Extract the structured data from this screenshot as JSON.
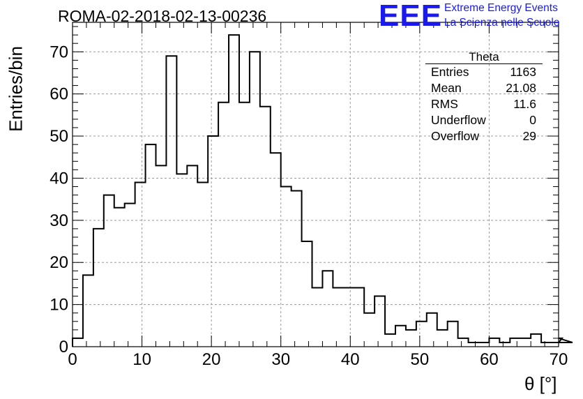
{
  "header": {
    "title": "ROMA-02-2018-02-13-00236",
    "logo_text": "EEE",
    "logo_line1": "Extreme Energy Events",
    "logo_line2": "La Scienza nelle Scuole",
    "logo_color": "#1a1aee"
  },
  "stats": {
    "name": "Theta",
    "rows": [
      {
        "label": "Entries",
        "value": "1163"
      },
      {
        "label": "Mean",
        "value": "21.08"
      },
      {
        "label": "RMS",
        "value": "11.6"
      },
      {
        "label": "Underflow",
        "value": "0"
      },
      {
        "label": "Overflow",
        "value": "29"
      }
    ]
  },
  "chart_data": {
    "type": "bar",
    "histogram": true,
    "xlabel": "θ [°]",
    "ylabel": "Entries/bin",
    "xlim": [
      0,
      70
    ],
    "ylim": [
      0,
      77
    ],
    "bin_width": 1.5,
    "bin_edges_start": 0,
    "x_ticks": [
      0,
      10,
      20,
      30,
      40,
      50,
      60,
      70
    ],
    "y_ticks": [
      0,
      10,
      20,
      30,
      40,
      50,
      60,
      70
    ],
    "grid": true,
    "values": [
      2,
      17,
      28,
      36,
      33,
      34,
      39,
      48,
      43,
      69,
      41,
      43,
      39,
      50,
      58,
      74,
      58,
      70,
      57,
      46,
      38,
      37,
      25,
      14,
      18,
      14,
      14,
      14,
      8,
      12,
      3,
      5,
      4,
      6,
      8,
      4,
      6,
      2,
      1,
      1,
      2,
      1,
      2,
      2,
      3,
      1,
      1,
      2,
      1
    ]
  }
}
